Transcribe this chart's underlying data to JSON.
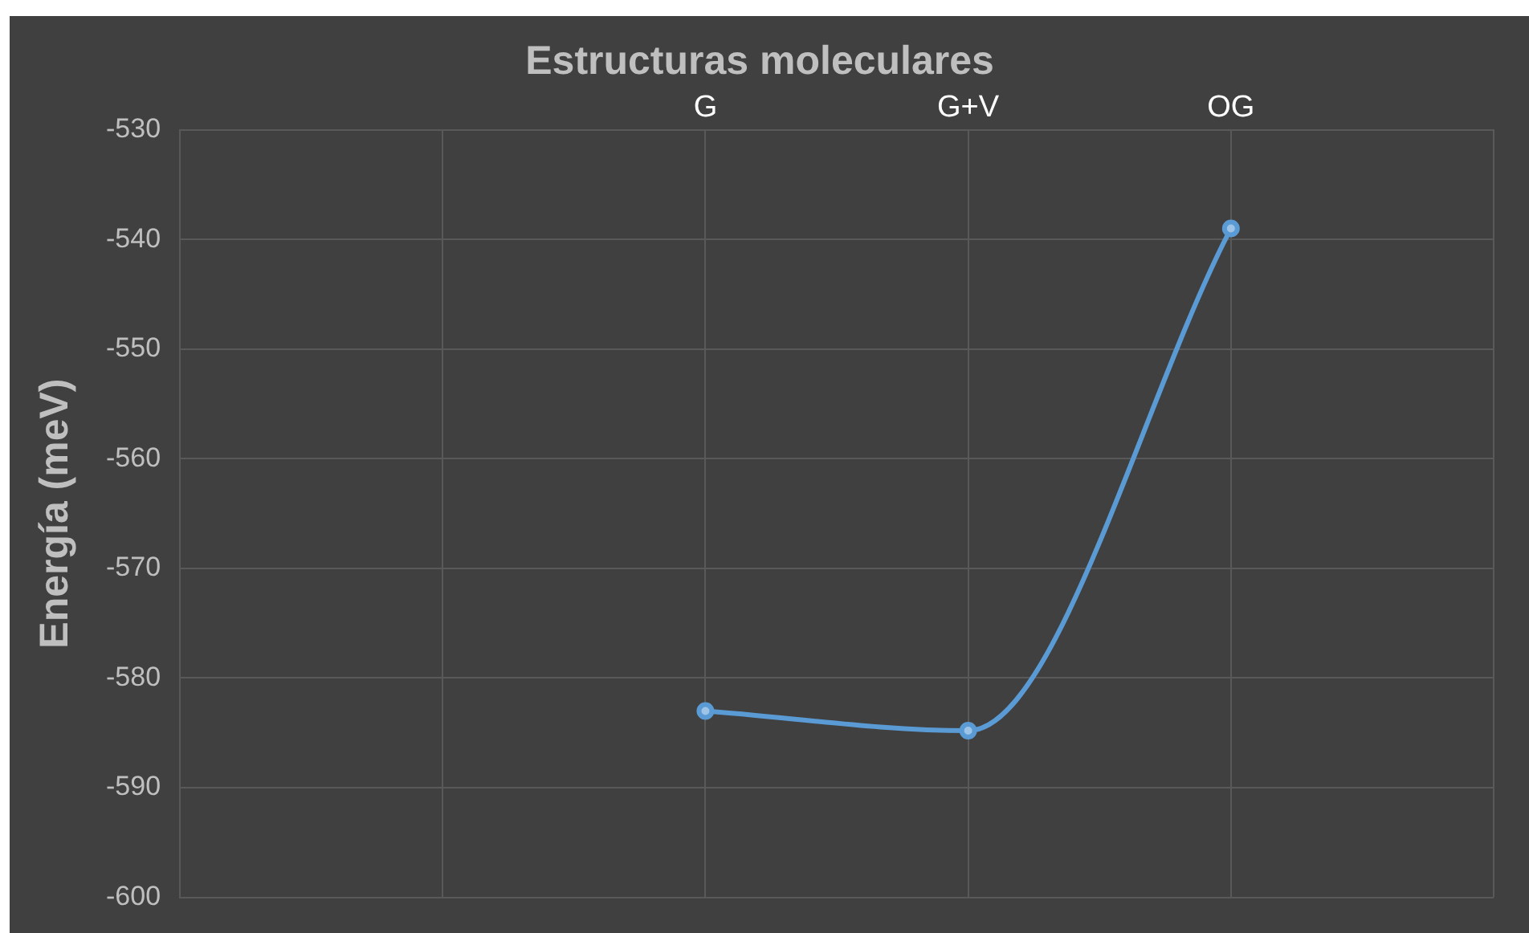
{
  "chart_data": {
    "type": "line",
    "title": "Estructuras moleculares",
    "ylabel": "Energía (meV)",
    "categories": [
      null,
      null,
      "G",
      "G+V",
      "OG",
      null
    ],
    "series": [
      {
        "color": "#5b9bd5",
        "values": [
          null,
          null,
          -583.0,
          -584.8,
          -539.0,
          null
        ]
      }
    ],
    "ylim": [
      -600,
      -530
    ],
    "yticks": [
      -600,
      -590,
      -580,
      -570,
      -560,
      -550,
      -540,
      -530
    ],
    "grid": true,
    "legend": false,
    "marker": "circle"
  }
}
